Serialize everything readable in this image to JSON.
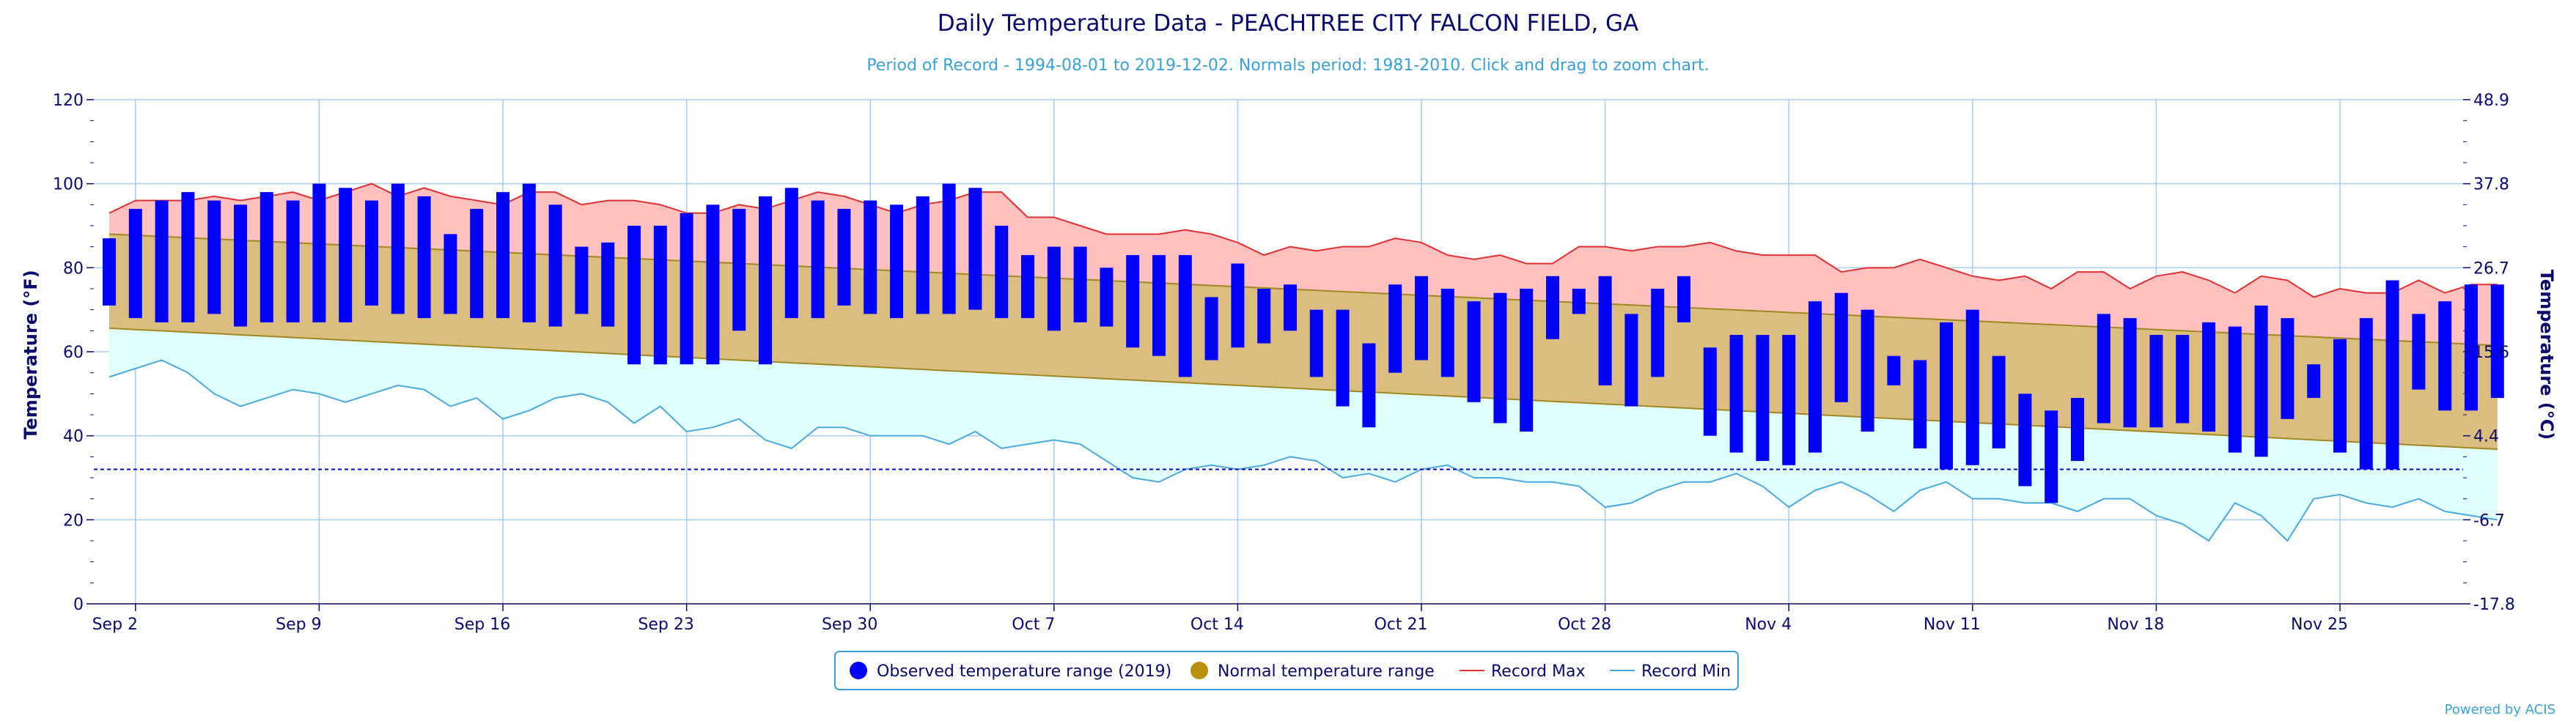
{
  "colors": {
    "title": "#0a0a6e",
    "subtitle": "#3aa0d6",
    "axis_text": "#0a0a6e",
    "grid": "#a8cbe6",
    "observed": "#0000ff",
    "normal_fill": "#dcbd80",
    "normal_line": "#a08820",
    "normal_legend": "#b8900e",
    "record_max_fill": "#ffc0c0",
    "record_max_line": "#e23030",
    "record_min_fill": "#e0ffff",
    "record_min_line": "#48aadd",
    "freeze_line": "#0000cc",
    "credit": "#3aa0d6"
  },
  "chart_data": {
    "type": "bar",
    "title": "Daily Temperature Data - PEACHTREE CITY FALCON FIELD, GA",
    "subtitle": "Period of Record - 1994-08-01 to 2019-12-02. Normals period: 1981-2010. Click and drag to zoom chart.",
    "ylabel": "Temperature (°F)",
    "ylabel_right": "Temperature (°C)",
    "ylim": [
      0,
      120
    ],
    "yticks": [
      0,
      20,
      40,
      60,
      80,
      100,
      120
    ],
    "yticks_right": [
      "-17.8",
      "-6.7",
      "4.4",
      "15.6",
      "26.7",
      "37.8",
      "48.9"
    ],
    "x_start_date": "2019-09-01",
    "x_end_date": "2019-11-30",
    "x_ticks": [
      {
        "day": 1,
        "label": "Sep 2"
      },
      {
        "day": 8,
        "label": "Sep 9"
      },
      {
        "day": 15,
        "label": "Sep 16"
      },
      {
        "day": 22,
        "label": "Sep 23"
      },
      {
        "day": 29,
        "label": "Sep 30"
      },
      {
        "day": 36,
        "label": "Oct 7"
      },
      {
        "day": 43,
        "label": "Oct 14"
      },
      {
        "day": 50,
        "label": "Oct 21"
      },
      {
        "day": 57,
        "label": "Oct 28"
      },
      {
        "day": 64,
        "label": "Nov 4"
      },
      {
        "day": 71,
        "label": "Nov 11"
      },
      {
        "day": 78,
        "label": "Nov 18"
      },
      {
        "day": 85,
        "label": "Nov 25"
      }
    ],
    "freeze_line": 32,
    "grid": true,
    "legend_position": "bottom-center",
    "series": [
      {
        "name": "Observed temperature range (2019)",
        "type": "range-bar",
        "low": [
          71,
          68,
          67,
          67,
          69,
          66,
          67,
          67,
          67,
          67,
          71,
          69,
          68,
          69,
          68,
          68,
          67,
          66,
          69,
          66,
          57,
          57,
          57,
          57,
          65,
          57,
          68,
          68,
          71,
          69,
          68,
          69,
          69,
          70,
          68,
          68,
          65,
          67,
          66,
          61,
          59,
          54,
          58,
          61,
          62,
          65,
          54,
          47,
          42,
          55,
          58,
          54,
          48,
          43,
          41,
          63,
          69,
          52,
          47,
          54,
          67,
          40,
          36,
          34,
          33,
          36,
          48,
          41,
          52,
          37,
          32,
          33,
          37,
          28,
          24,
          34,
          43,
          42,
          42,
          43,
          41,
          36,
          35,
          44,
          49,
          36,
          32,
          32,
          51,
          46,
          46,
          49
        ],
        "high": [
          87,
          94,
          96,
          98,
          96,
          95,
          98,
          96,
          100,
          99,
          96,
          100,
          97,
          88,
          94,
          98,
          100,
          95,
          85,
          86,
          90,
          90,
          93,
          95,
          94,
          97,
          99,
          96,
          94,
          96,
          95,
          97,
          100,
          99,
          90,
          83,
          85,
          85,
          80,
          83,
          83,
          83,
          73,
          81,
          75,
          76,
          70,
          70,
          62,
          76,
          78,
          75,
          72,
          74,
          75,
          78,
          75,
          78,
          69,
          75,
          78,
          61,
          64,
          64,
          64,
          72,
          74,
          70,
          59,
          58,
          67,
          70,
          59,
          50,
          46,
          49,
          69,
          68,
          64,
          64,
          67,
          66,
          71,
          68,
          57,
          63,
          68,
          77,
          69,
          72,
          76,
          76
        ]
      },
      {
        "name": "Normal temperature range",
        "type": "band",
        "low_start": 65.6,
        "low_end": 36.8,
        "high_start": 88.0,
        "high_end": 61.5
      },
      {
        "name": "Record Max",
        "type": "line",
        "values": [
          93,
          96,
          96,
          96,
          97,
          96,
          97,
          98,
          96,
          98,
          100,
          97,
          99,
          97,
          96,
          95,
          98,
          98,
          95,
          96,
          96,
          95,
          93,
          93,
          95,
          94,
          96,
          98,
          97,
          95,
          93,
          95,
          96,
          98,
          98,
          92,
          92,
          90,
          88,
          88,
          88,
          89,
          88,
          86,
          83,
          85,
          84,
          85,
          85,
          87,
          86,
          83,
          82,
          83,
          81,
          81,
          85,
          85,
          84,
          85,
          85,
          86,
          84,
          83,
          83,
          83,
          79,
          80,
          80,
          82,
          80,
          78,
          77,
          78,
          75,
          79,
          79,
          75,
          78,
          79,
          77,
          74,
          78,
          77,
          73,
          75,
          74,
          74,
          77,
          74,
          76,
          76
        ]
      },
      {
        "name": "Record Min",
        "type": "line",
        "values": [
          54,
          56,
          58,
          55,
          50,
          47,
          49,
          51,
          50,
          48,
          50,
          52,
          51,
          47,
          49,
          44,
          46,
          49,
          50,
          48,
          43,
          47,
          41,
          42,
          44,
          39,
          37,
          42,
          42,
          40,
          40,
          40,
          38,
          41,
          37,
          38,
          39,
          38,
          34,
          30,
          29,
          32,
          33,
          32,
          33,
          35,
          34,
          30,
          31,
          29,
          32,
          33,
          30,
          30,
          29,
          29,
          28,
          23,
          24,
          27,
          29,
          29,
          31,
          28,
          23,
          27,
          29,
          26,
          22,
          27,
          29,
          25,
          25,
          24,
          24,
          22,
          25,
          25,
          21,
          19,
          15,
          24,
          21,
          15,
          25,
          26,
          24,
          23,
          25,
          22,
          21,
          20
        ]
      }
    ]
  },
  "legend": {
    "observed": "Observed temperature range (2019)",
    "normal": "Normal temperature range",
    "record_max": "Record Max",
    "record_min": "Record Min"
  },
  "credit": "Powered by ACIS"
}
